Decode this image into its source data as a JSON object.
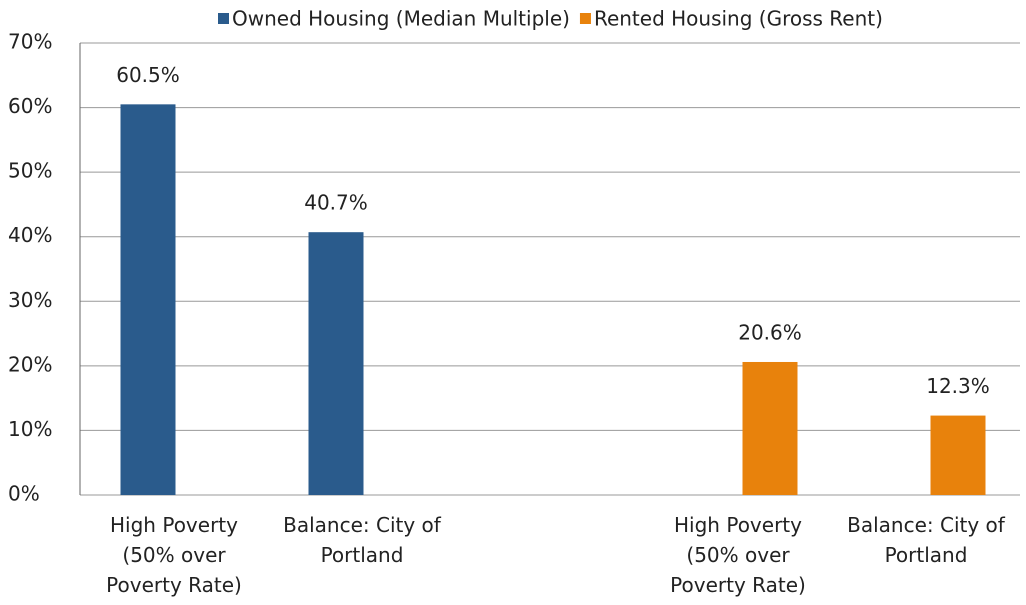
{
  "chart_data": {
    "type": "bar",
    "categories": [
      "High Poverty (50% over Poverty Rate)",
      "Balance: City of Portland",
      null,
      "High Poverty (50% over Poverty Rate)",
      "Balance: City of Portland"
    ],
    "series": [
      {
        "name": "Owned Housing (Median Multiple)",
        "color": "#2a5b8c",
        "values": [
          60.5,
          40.7,
          null,
          null,
          null
        ],
        "value_labels": [
          "60.5%",
          "40.7%",
          null,
          null,
          null
        ]
      },
      {
        "name": "Rented Housing (Gross Rent)",
        "color": "#e8820c",
        "values": [
          null,
          null,
          null,
          20.6,
          12.3
        ],
        "value_labels": [
          null,
          null,
          null,
          "20.6%",
          "12.3%"
        ]
      }
    ],
    "ylim": [
      0,
      70
    ],
    "yticks": [
      {
        "value": 0,
        "label": "0%"
      },
      {
        "value": 10,
        "label": "10%"
      },
      {
        "value": 20,
        "label": "20%"
      },
      {
        "value": 30,
        "label": "30%"
      },
      {
        "value": 40,
        "label": "40%"
      },
      {
        "value": 50,
        "label": "50%"
      },
      {
        "value": 60,
        "label": "60%"
      },
      {
        "value": 70,
        "label": "70%"
      }
    ],
    "grid": true,
    "legend": "top"
  }
}
